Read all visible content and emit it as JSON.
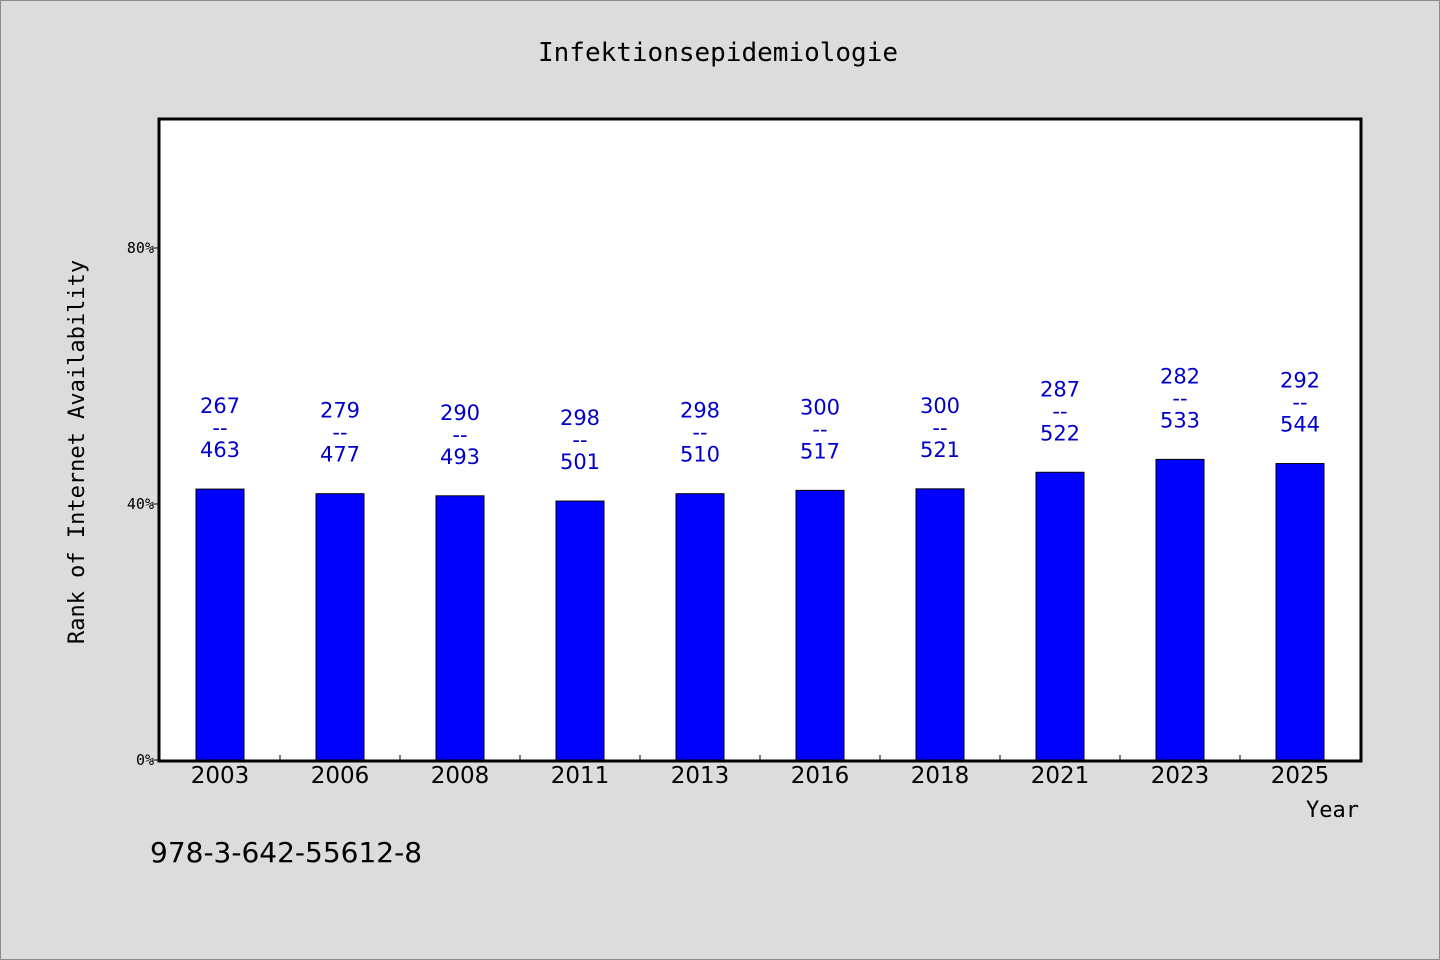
{
  "chart_data": {
    "type": "bar",
    "title": "Infektionsepidemiologie",
    "xlabel": "Year",
    "ylabel": "Rank of Internet Availability",
    "ylim": [
      0,
      1
    ],
    "yticks": [
      {
        "value": 0,
        "label": "0%"
      },
      {
        "value": 0.4,
        "label": "40%"
      },
      {
        "value": 0.8,
        "label": "80%"
      }
    ],
    "categories": [
      "2003",
      "2006",
      "2008",
      "2011",
      "2013",
      "2016",
      "2018",
      "2021",
      "2023",
      "2025"
    ],
    "values": [
      0.4233,
      0.4161,
      0.4128,
      0.4046,
      0.4161,
      0.4213,
      0.4237,
      0.4496,
      0.4697,
      0.4632
    ],
    "data_labels": [
      {
        "top": "267",
        "sep": "--",
        "bottom": "463"
      },
      {
        "top": "279",
        "sep": "--",
        "bottom": "477"
      },
      {
        "top": "290",
        "sep": "--",
        "bottom": "493"
      },
      {
        "top": "298",
        "sep": "--",
        "bottom": "501"
      },
      {
        "top": "298",
        "sep": "--",
        "bottom": "510"
      },
      {
        "top": "300",
        "sep": "--",
        "bottom": "517"
      },
      {
        "top": "300",
        "sep": "--",
        "bottom": "521"
      },
      {
        "top": "287",
        "sep": "--",
        "bottom": "522"
      },
      {
        "top": "282",
        "sep": "--",
        "bottom": "533"
      },
      {
        "top": "292",
        "sep": "--",
        "bottom": "544"
      }
    ],
    "bar_color": "#0000ff",
    "label_color": "#0000cc",
    "grid": false,
    "legend": "none"
  },
  "footnote": "978-3-642-55612-8",
  "colors": {
    "background": "#dcdcdc",
    "plot_background": "#ffffff"
  }
}
